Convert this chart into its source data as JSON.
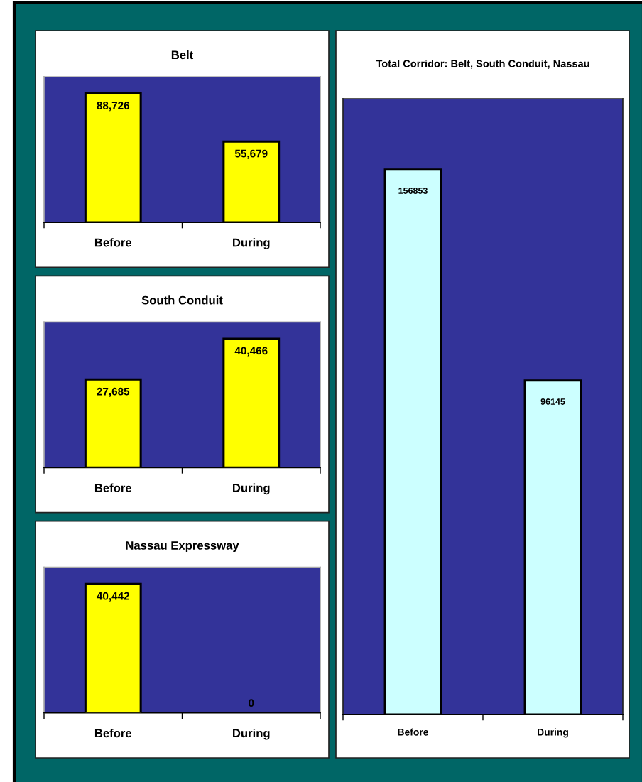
{
  "chart_data": [
    {
      "type": "bar",
      "title": "Belt",
      "categories": [
        "Before",
        "During"
      ],
      "values": [
        88726,
        55679
      ],
      "color": "#ffff00",
      "value_labels": [
        "88,726",
        "55,679"
      ]
    },
    {
      "type": "bar",
      "title": "South Conduit",
      "categories": [
        "Before",
        "During"
      ],
      "values": [
        27685,
        40466
      ],
      "color": "#ffff00",
      "value_labels": [
        "27,685",
        "40,466"
      ]
    },
    {
      "type": "bar",
      "title": "Nassau Expressway",
      "categories": [
        "Before",
        "During"
      ],
      "values": [
        40442,
        0
      ],
      "color": "#ffff00",
      "value_labels": [
        "40,442",
        "0"
      ]
    },
    {
      "type": "bar",
      "title": "Total Corridor: Belt, South Conduit, Nassau",
      "categories": [
        "Before",
        "During"
      ],
      "values": [
        156853,
        96145
      ],
      "color": "#ccffff",
      "value_labels": [
        "156853",
        "96145"
      ]
    }
  ]
}
